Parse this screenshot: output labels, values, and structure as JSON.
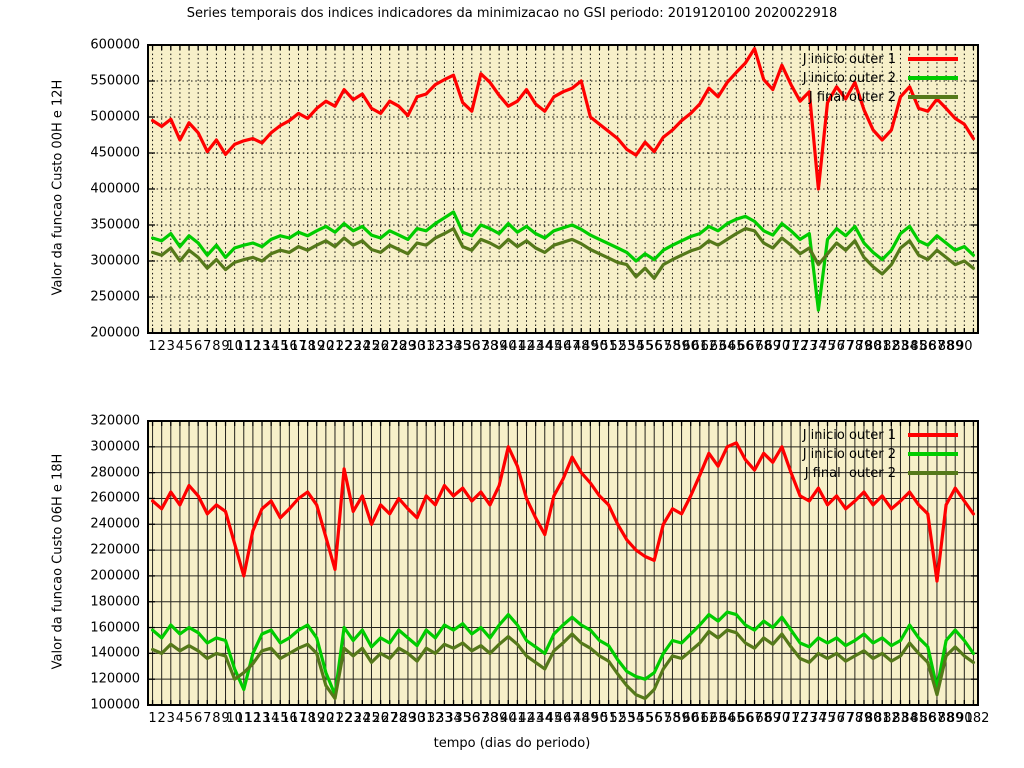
{
  "title": "Series temporais dos indices indicadores da minimizacao no GSI periodo: 2019120100 2020022918",
  "x_axis_title": "tempo (dias do periodo)",
  "colors": {
    "series_red": "#ff0000",
    "series_green": "#00cc00",
    "series_olive": "#55791a",
    "plot_background": "#f7f0c9",
    "grid": "#000000",
    "border": "#000000"
  },
  "plots": [
    {
      "id": "top",
      "y_axis_title": "Valor da funcao Custo 00H e 12H",
      "y_ticks": [
        "600000",
        "550000",
        "500000",
        "450000",
        "400000",
        "350000",
        "300000",
        "250000",
        "200000"
      ],
      "y_min": 200000,
      "y_max": 600000,
      "x_label_from": 1,
      "x_label_to": 90,
      "x_extra_label": "",
      "grid_style": "dotted",
      "legend": [
        {
          "label": "J inicio outer 1",
          "color": "#ff0000"
        },
        {
          "label": "J inicio outer 2",
          "color": "#00cc00"
        },
        {
          "label": "J final outer 2",
          "color": "#55791a"
        }
      ]
    },
    {
      "id": "bottom",
      "y_axis_title": "Valor da funcao Custo 06H e 18H",
      "y_ticks": [
        "320000",
        "300000",
        "280000",
        "260000",
        "240000",
        "220000",
        "200000",
        "180000",
        "160000",
        "140000",
        "120000",
        "100000"
      ],
      "y_min": 100000,
      "y_max": 320000,
      "x_label_from": 1,
      "x_label_to": 90,
      "x_extra_label": "182",
      "grid_style": "solid",
      "legend": [
        {
          "label": "J inicio outer 1",
          "color": "#ff0000"
        },
        {
          "label": "J inicio outer 2",
          "color": "#00cc00"
        },
        {
          "label": "J final  outer 2",
          "color": "#55791a"
        }
      ]
    }
  ],
  "chart_data": [
    {
      "type": "line",
      "title": "Custo 00H e 12H",
      "xlabel": "tempo (dias do periodo)",
      "ylabel": "Valor da funcao Custo 00H e 12H",
      "x_range": [
        1,
        91
      ],
      "x_unit": "dia do periodo",
      "ylim": [
        200000,
        600000
      ],
      "grid": "dotted",
      "legend_position": "top-right-inside",
      "values_unit_multiplier": 1000,
      "series": [
        {
          "name": "J inicio outer 1",
          "color": "#ff0000",
          "values": [
            495,
            487,
            497,
            468,
            492,
            478,
            452,
            468,
            448,
            462,
            467,
            470,
            464,
            478,
            488,
            495,
            505,
            498,
            512,
            522,
            515,
            538,
            524,
            532,
            512,
            505,
            522,
            515,
            502,
            528,
            532,
            545,
            552,
            558,
            520,
            508,
            560,
            548,
            530,
            515,
            522,
            538,
            518,
            508,
            528,
            535,
            540,
            550,
            500,
            490,
            480,
            470,
            455,
            447,
            465,
            452,
            472,
            482,
            495,
            505,
            518,
            540,
            528,
            548,
            562,
            575,
            595,
            552,
            538,
            572,
            545,
            522,
            535,
            400,
            520,
            542,
            525,
            548,
            510,
            482,
            468,
            482,
            528,
            542,
            512,
            508,
            525,
            512,
            498,
            490,
            470
          ]
        },
        {
          "name": "J inicio outer 2",
          "color": "#00cc00",
          "values": [
            332,
            328,
            338,
            320,
            335,
            325,
            308,
            322,
            305,
            318,
            322,
            325,
            320,
            330,
            335,
            332,
            340,
            335,
            342,
            348,
            340,
            352,
            342,
            348,
            336,
            332,
            342,
            336,
            330,
            345,
            342,
            352,
            360,
            368,
            340,
            335,
            350,
            345,
            338,
            352,
            340,
            348,
            338,
            332,
            342,
            346,
            350,
            344,
            336,
            330,
            324,
            318,
            312,
            300,
            310,
            302,
            315,
            322,
            328,
            334,
            338,
            348,
            342,
            352,
            358,
            362,
            355,
            342,
            336,
            352,
            342,
            330,
            338,
            232,
            330,
            345,
            335,
            348,
            325,
            312,
            302,
            315,
            338,
            348,
            328,
            322,
            335,
            325,
            315,
            320,
            308
          ]
        },
        {
          "name": "J final outer 2",
          "color": "#55791a",
          "values": [
            312,
            308,
            318,
            300,
            315,
            305,
            290,
            302,
            288,
            298,
            302,
            305,
            300,
            310,
            315,
            312,
            320,
            315,
            322,
            328,
            320,
            332,
            322,
            328,
            316,
            312,
            322,
            316,
            310,
            325,
            322,
            332,
            338,
            345,
            320,
            315,
            330,
            325,
            318,
            330,
            320,
            328,
            318,
            312,
            322,
            326,
            330,
            324,
            316,
            310,
            304,
            298,
            295,
            278,
            290,
            276,
            295,
            302,
            308,
            314,
            318,
            328,
            322,
            330,
            338,
            345,
            342,
            325,
            318,
            332,
            322,
            310,
            318,
            295,
            310,
            325,
            315,
            328,
            305,
            292,
            282,
            295,
            318,
            328,
            308,
            302,
            315,
            305,
            295,
            300,
            290
          ]
        }
      ]
    },
    {
      "type": "line",
      "title": "Custo 06H e 18H",
      "xlabel": "tempo (dias do periodo)",
      "ylabel": "Valor da funcao Custo 06H e 18H",
      "x_range": [
        1,
        91
      ],
      "x_unit": "dia do periodo",
      "ylim": [
        100000,
        320000
      ],
      "grid": "solid",
      "legend_position": "top-right-inside",
      "values_unit_multiplier": 1000,
      "series": [
        {
          "name": "J inicio outer 1",
          "color": "#ff0000",
          "values": [
            258,
            252,
            265,
            255,
            270,
            262,
            248,
            255,
            250,
            225,
            200,
            235,
            252,
            258,
            245,
            252,
            260,
            265,
            255,
            230,
            205,
            283,
            250,
            262,
            240,
            255,
            248,
            260,
            252,
            245,
            262,
            255,
            270,
            262,
            268,
            258,
            265,
            255,
            270,
            300,
            285,
            260,
            245,
            232,
            262,
            275,
            292,
            280,
            272,
            262,
            255,
            240,
            228,
            220,
            215,
            212,
            240,
            252,
            248,
            262,
            278,
            295,
            285,
            300,
            303,
            290,
            282,
            295,
            288,
            300,
            280,
            262,
            258,
            268,
            255,
            262,
            252,
            258,
            265,
            255,
            262,
            252,
            258,
            265,
            255,
            248,
            196,
            255,
            268,
            258,
            248
          ]
        },
        {
          "name": "J inicio outer 2",
          "color": "#00cc00",
          "values": [
            158,
            152,
            162,
            155,
            160,
            156,
            148,
            152,
            150,
            128,
            112,
            140,
            155,
            158,
            148,
            152,
            158,
            162,
            152,
            125,
            108,
            160,
            150,
            158,
            145,
            152,
            148,
            158,
            152,
            146,
            158,
            152,
            162,
            158,
            163,
            155,
            160,
            152,
            162,
            170,
            162,
            150,
            145,
            140,
            155,
            162,
            168,
            162,
            158,
            150,
            146,
            135,
            126,
            122,
            120,
            125,
            140,
            150,
            148,
            155,
            162,
            170,
            165,
            172,
            170,
            162,
            158,
            165,
            160,
            168,
            158,
            148,
            145,
            152,
            148,
            152,
            146,
            150,
            155,
            148,
            152,
            146,
            150,
            162,
            152,
            145,
            113,
            150,
            158,
            150,
            140
          ]
        },
        {
          "name": "J final  outer 2",
          "color": "#55791a",
          "values": [
            143,
            140,
            147,
            142,
            146,
            142,
            136,
            140,
            138,
            120,
            125,
            132,
            142,
            144,
            136,
            140,
            144,
            147,
            140,
            115,
            105,
            144,
            138,
            144,
            133,
            140,
            136,
            144,
            140,
            134,
            144,
            140,
            147,
            144,
            148,
            142,
            146,
            140,
            147,
            153,
            147,
            138,
            133,
            128,
            142,
            148,
            155,
            148,
            144,
            138,
            134,
            124,
            115,
            108,
            105,
            112,
            128,
            138,
            136,
            142,
            148,
            157,
            152,
            158,
            156,
            148,
            144,
            152,
            147,
            155,
            145,
            136,
            133,
            140,
            136,
            140,
            134,
            138,
            142,
            136,
            140,
            134,
            138,
            148,
            140,
            133,
            108,
            138,
            145,
            138,
            133
          ]
        }
      ]
    }
  ]
}
